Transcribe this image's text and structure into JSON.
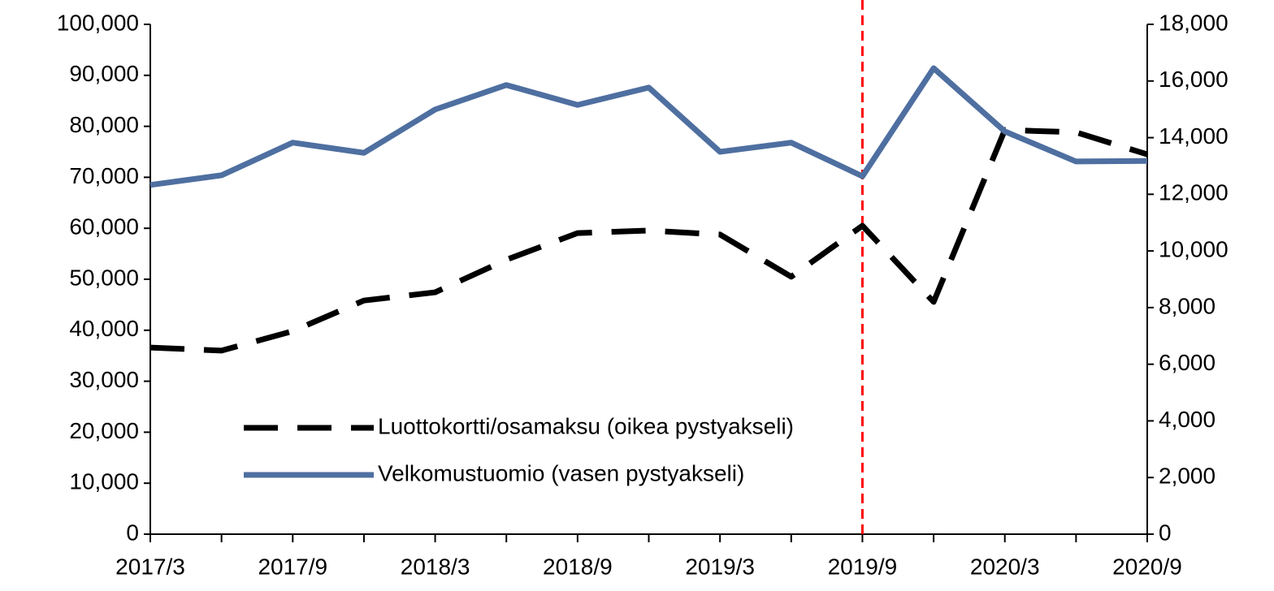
{
  "chart_data": {
    "type": "line",
    "categories": [
      "2017/3",
      null,
      "2017/9",
      null,
      "2018/3",
      null,
      "2018/9",
      null,
      "2019/3",
      null,
      "2019/9",
      null,
      "2020/3",
      null,
      "2020/9"
    ],
    "series": [
      {
        "name": "Luottokortti/osamaksu (oikea pystyakseli)",
        "color": "#000000",
        "dash": true,
        "axis": "y2",
        "values": [
          6590,
          6480,
          7170,
          8250,
          8540,
          9690,
          10630,
          10720,
          10580,
          9090,
          10890,
          8200,
          14270,
          14190,
          13410
        ]
      },
      {
        "name": "Velkomustuomio (vasen pystyakseli)",
        "color": "#4e6fa0",
        "dash": false,
        "values": [
          68500,
          70400,
          76800,
          74800,
          83300,
          88100,
          84200,
          87600,
          75000,
          76800,
          70200,
          91400,
          79000,
          73100,
          73200
        ]
      }
    ],
    "ylim": [
      0,
      100000
    ],
    "yticks": [
      0,
      {
        "value": 10000,
        "label": "10,000"
      },
      {
        "value": 20000,
        "label": "20,000"
      },
      {
        "value": 30000,
        "label": "30,000"
      },
      {
        "value": 40000,
        "label": "40,000"
      },
      {
        "value": 50000,
        "label": "50,000"
      },
      {
        "value": 60000,
        "label": "60,000"
      },
      {
        "value": 70000,
        "label": "70,000"
      },
      {
        "value": 80000,
        "label": "80,000"
      },
      {
        "value": 90000,
        "label": "90,000"
      },
      {
        "value": 100000,
        "label": "100,000"
      }
    ],
    "y2lim": [
      0,
      18000
    ],
    "y2ticks": [
      0,
      {
        "value": 2000,
        "label": "2,000"
      },
      {
        "value": 4000,
        "label": "4,000"
      },
      {
        "value": 6000,
        "label": "6,000"
      },
      {
        "value": 8000,
        "label": "8,000"
      },
      {
        "value": 10000,
        "label": "10,000"
      },
      {
        "value": 12000,
        "label": "12,000"
      },
      {
        "value": 14000,
        "label": "14,000"
      },
      {
        "value": 16000,
        "label": "16,000"
      },
      {
        "value": 18000,
        "label": "18,000"
      }
    ],
    "marker_category": "2019/9",
    "marker_color": "#ff0000",
    "grid": false
  }
}
